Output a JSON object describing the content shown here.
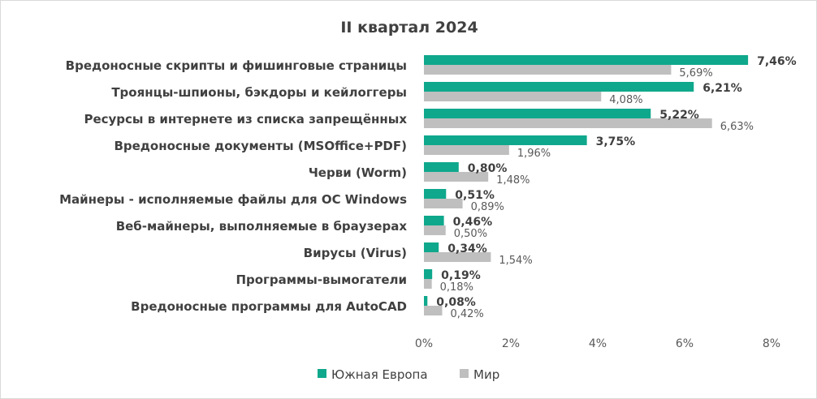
{
  "chart_data": {
    "type": "bar",
    "orientation": "horizontal",
    "title": "II квартал 2024",
    "categories": [
      "Вредоносные скрипты и фишинговые страницы",
      "Троянцы-шпионы, бэкдоры и кейлоггеры",
      "Ресурсы в интернете из списка запрещённых",
      "Вредоносные документы (MSOffice+PDF)",
      "Черви (Worm)",
      "Майнеры - исполняемые файлы для ОС Windows",
      "Веб-майнеры, выполняемые в браузерах",
      "Вирусы (Virus)",
      "Программы-вымогатели",
      "Вредоносные программы для AutoCAD"
    ],
    "series": [
      {
        "name": "Южная Европа",
        "color": "#0fa88c",
        "values": [
          7.46,
          6.21,
          5.22,
          3.75,
          0.8,
          0.51,
          0.46,
          0.34,
          0.19,
          0.08
        ],
        "labels": [
          "7,46%",
          "6,21%",
          "5,22%",
          "3,75%",
          "0,80%",
          "0,51%",
          "0,46%",
          "0,34%",
          "0,19%",
          "0,08%"
        ]
      },
      {
        "name": "Мир",
        "color": "#bfbfbf",
        "values": [
          5.69,
          4.08,
          6.63,
          1.96,
          1.48,
          0.89,
          0.5,
          1.54,
          0.18,
          0.42
        ],
        "labels": [
          "5,69%",
          "4,08%",
          "6,63%",
          "1,96%",
          "1,48%",
          "0,89%",
          "0,50%",
          "1,54%",
          "0,18%",
          "0,42%"
        ]
      }
    ],
    "xlim": [
      0,
      8
    ],
    "xticks": [
      "0%",
      "2%",
      "4%",
      "6%",
      "8%"
    ],
    "xlabel": "",
    "ylabel": "",
    "grid": false,
    "legend_position": "bottom"
  }
}
